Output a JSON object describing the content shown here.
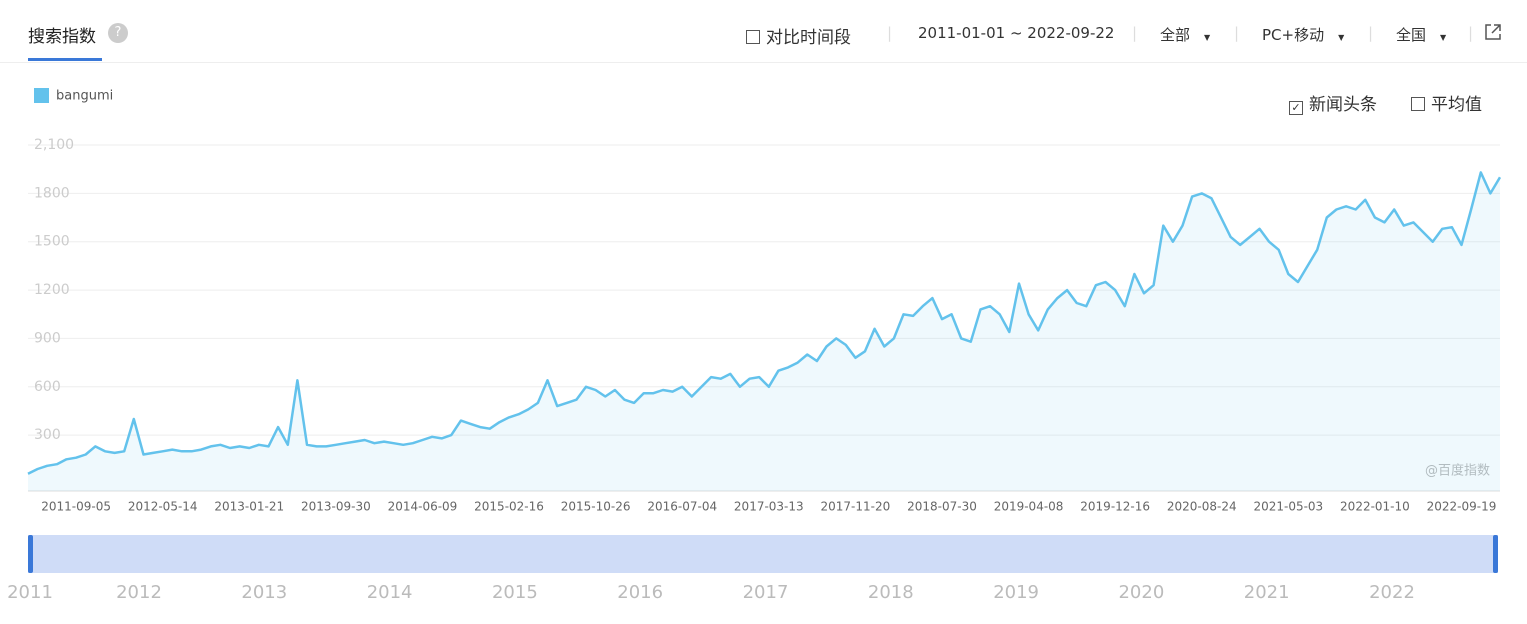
{
  "header": {
    "title": "搜索指数",
    "help": "?",
    "compare": "对比时间段",
    "date_range": "2011-01-01 ~ 2022-09-22",
    "source": "全部",
    "device": "PC+移动",
    "region": "全国"
  },
  "options": {
    "news": "新闻头条",
    "average": "平均值"
  },
  "watermark": "@百度指数",
  "navigator": {
    "years": [
      "2011",
      "2012",
      "2013",
      "2014",
      "2015",
      "2016",
      "2017",
      "2018",
      "2019",
      "2020",
      "2021",
      "2022"
    ]
  },
  "chart_data": {
    "type": "line",
    "grid": true,
    "categories": [
      null,
      null,
      null,
      null,
      null,
      "2011-09-05",
      null,
      null,
      null,
      null,
      null,
      null,
      null,
      null,
      "2012-05-14",
      null,
      null,
      null,
      null,
      null,
      null,
      null,
      null,
      "2013-01-21",
      null,
      null,
      null,
      null,
      null,
      null,
      null,
      null,
      "2013-09-30",
      null,
      null,
      null,
      null,
      null,
      null,
      null,
      null,
      "2014-06-09",
      null,
      null,
      null,
      null,
      null,
      null,
      null,
      null,
      "2015-02-16",
      null,
      null,
      null,
      null,
      null,
      null,
      null,
      null,
      "2015-10-26",
      null,
      null,
      null,
      null,
      null,
      null,
      null,
      null,
      "2016-07-04",
      null,
      null,
      null,
      null,
      null,
      null,
      null,
      null,
      "2017-03-13",
      null,
      null,
      null,
      null,
      null,
      null,
      null,
      null,
      "2017-11-20",
      null,
      null,
      null,
      null,
      null,
      null,
      null,
      null,
      "2018-07-30",
      null,
      null,
      null,
      null,
      null,
      null,
      null,
      null,
      "2019-04-08",
      null,
      null,
      null,
      null,
      null,
      null,
      null,
      null,
      "2019-12-16",
      null,
      null,
      null,
      null,
      null,
      null,
      null,
      null,
      "2020-08-24",
      null,
      null,
      null,
      null,
      null,
      null,
      null,
      null,
      "2021-05-03",
      null,
      null,
      null,
      null,
      null,
      null,
      null,
      null,
      "2022-01-10",
      null,
      null,
      null,
      null,
      null,
      null,
      null,
      null,
      "2022-09-19",
      null,
      null,
      null,
      null
    ],
    "series": [
      {
        "name": "bangumi",
        "color": "#63c2ec",
        "values": [
          60,
          90,
          110,
          120,
          150,
          160,
          180,
          230,
          200,
          190,
          200,
          400,
          180,
          190,
          200,
          210,
          200,
          200,
          210,
          230,
          240,
          220,
          230,
          220,
          240,
          230,
          350,
          240,
          640,
          240,
          230,
          230,
          240,
          250,
          260,
          270,
          250,
          260,
          250,
          240,
          250,
          270,
          290,
          280,
          300,
          390,
          370,
          350,
          340,
          380,
          410,
          430,
          460,
          500,
          640,
          480,
          500,
          520,
          600,
          580,
          540,
          580,
          520,
          500,
          560,
          560,
          580,
          570,
          600,
          540,
          600,
          660,
          650,
          680,
          600,
          650,
          660,
          600,
          700,
          720,
          750,
          800,
          760,
          850,
          900,
          860,
          780,
          820,
          960,
          850,
          900,
          1050,
          1040,
          1100,
          1150,
          1020,
          1050,
          900,
          880,
          1080,
          1100,
          1050,
          940,
          1240,
          1050,
          950,
          1080,
          1150,
          1200,
          1120,
          1100,
          1230,
          1250,
          1200,
          1100,
          1300,
          1180,
          1230,
          1600,
          1500,
          1600,
          1780,
          1800,
          1770,
          1650,
          1530,
          1480,
          1530,
          1580,
          1500,
          1450,
          1300,
          1250,
          1350,
          1450,
          1650,
          1700,
          1720,
          1700,
          1760,
          1650,
          1620,
          1700,
          1600,
          1620,
          1560,
          1500,
          1580,
          1590,
          1480,
          1700,
          1930,
          1800,
          1900
        ]
      }
    ],
    "ylim": [
      0,
      2100
    ],
    "yticks": [
      300,
      600,
      900,
      1200,
      1500,
      1800,
      {
        "value": 2100,
        "label": "2,100"
      }
    ]
  }
}
